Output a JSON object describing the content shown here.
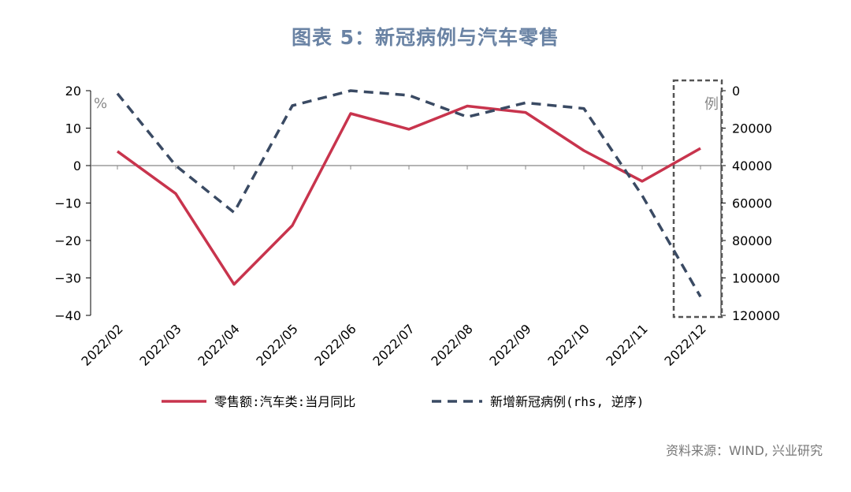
{
  "title": "图表 5：新冠病例与汽车零售",
  "source": "资料来源：WIND, 兴业研究",
  "chart_data": {
    "type": "line",
    "categories": [
      "2022/02",
      "2022/03",
      "2022/04",
      "2022/05",
      "2022/06",
      "2022/07",
      "2022/08",
      "2022/09",
      "2022/10",
      "2022/11",
      "2022/12"
    ],
    "left_axis": {
      "unit_label": "%",
      "ylim": [
        -40,
        20
      ],
      "ticks": [
        "20",
        "10",
        "0",
        "−10",
        "−20",
        "−30",
        "−40"
      ]
    },
    "right_axis": {
      "ylim": [
        0,
        120000
      ],
      "reversed": true,
      "ticks": [
        "0",
        "20000",
        "40000",
        "60000",
        "80000",
        "100000",
        "120000"
      ]
    },
    "highlight_label": "例",
    "series": [
      {
        "name": "零售额:汽车类:当月同比",
        "axis": "left",
        "style": "solid",
        "color": "#c8344d",
        "values": [
          3.8,
          -7.5,
          -31.7,
          -16.0,
          13.9,
          9.7,
          15.9,
          14.2,
          4.0,
          -4.2,
          4.6
        ]
      },
      {
        "name": "新增新冠病例(rhs, 逆序)",
        "axis": "right",
        "style": "dashed",
        "color": "#3a4a63",
        "values": [
          1500,
          40000,
          65000,
          8000,
          0,
          2500,
          14000,
          6500,
          9500,
          56000,
          110000
        ]
      }
    ]
  }
}
